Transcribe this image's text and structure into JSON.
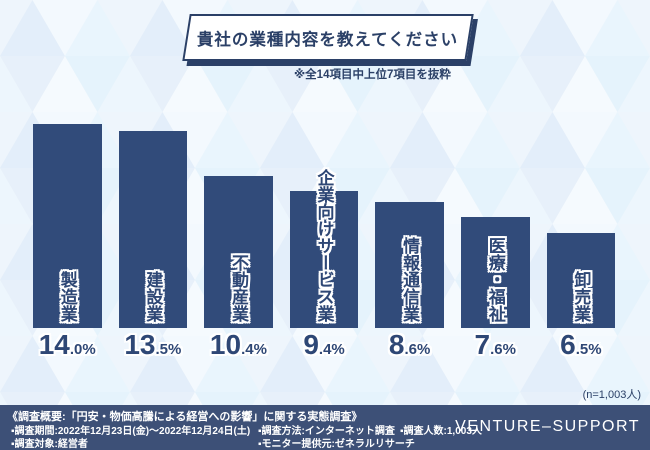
{
  "title": "貴社の業種内容を教えてください",
  "subtitle": "※全14項目中上位7項目を抜粋",
  "sample_note": "(n=1,003人)",
  "chart_data": {
    "type": "bar",
    "title": "貴社の業種内容を教えてください",
    "subtitle": "※全14項目中上位7項目を抜粋",
    "categories": [
      "製造業",
      "建設業",
      "不動産業",
      "企業向けサービス業",
      "情報通信業",
      "医療・福祉",
      "卸売業"
    ],
    "values": [
      14.0,
      13.5,
      10.4,
      9.4,
      8.6,
      7.6,
      6.5
    ],
    "unit": "%",
    "xlabel": "",
    "ylabel": "",
    "ylim": [
      0,
      14.5
    ],
    "grid": false,
    "legend": "none",
    "bar_color": "#314b7a",
    "sample_size": "(n=1,003人)"
  },
  "footer": {
    "overview": "《調査概要:「円安・物価高騰による経営への影響」に関する実態調査》",
    "row2": [
      "▪調査期間:2022年12月23日(金)〜2022年12月24日(土)",
      "▪調査方法:インターネット調査",
      "▪調査人数:1,003人"
    ],
    "row3": [
      "▪調査対象:経営者",
      "▪モニター提供元:ゼネラルリサーチ"
    ],
    "brand": "VENTURE–SUPPORT"
  },
  "colors": {
    "background": "#f1f7fd",
    "bar": "#314b7a",
    "navy_text": "#2b4067",
    "label_text": "#2e4775",
    "label_halo": "#ffffff",
    "footer_background": "#3d5077",
    "footer_text": "#ffffff",
    "triangle_shades": [
      "#e3eefa",
      "#f3f9fe",
      "#e9f5fd",
      "#eef5fc",
      "#f5fafe",
      "#e5f3fc"
    ]
  }
}
